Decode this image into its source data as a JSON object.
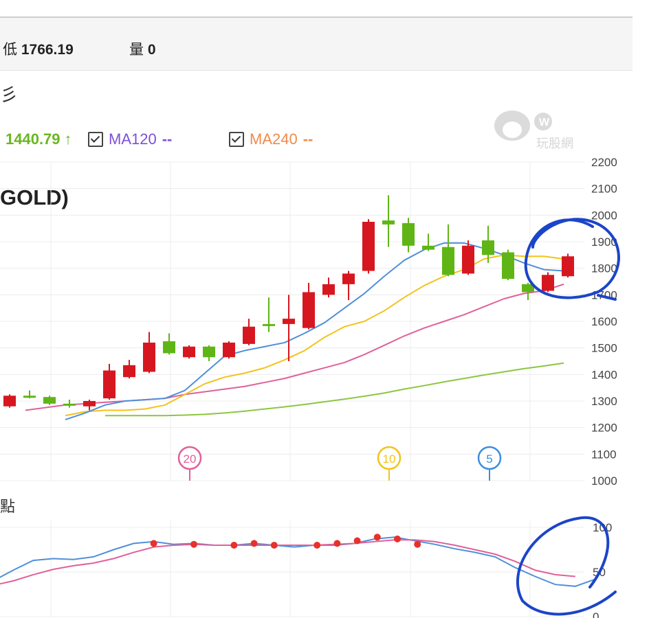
{
  "stats": {
    "low_label": "低",
    "low_value": "1766.19",
    "volume_label": "量",
    "volume_value": "0"
  },
  "period_label_fragment": "彡",
  "legend": {
    "ma_prev_value": "1440.79",
    "ma_prev_arrow": "↑",
    "ma120_label": "MA120",
    "ma120_value": "--",
    "ma240_label": "MA240",
    "ma240_value": "--"
  },
  "title_fragment": "GOLD)",
  "watermark": "玩股網",
  "oscillator_label_fragment": "點",
  "markers": [
    {
      "label": "20",
      "color": "#e0609a"
    },
    {
      "label": "10",
      "color": "#f2c31a"
    },
    {
      "label": "5",
      "color": "#3c8de0"
    }
  ],
  "colors": {
    "up": "#d7171f",
    "down": "#5fb515",
    "ma5": "#4f8fd8",
    "ma10": "#f2c31a",
    "ma20": "#e0609a",
    "ma60": "#8cc63f",
    "legend_green": "#69b71f",
    "legend_purple": "#7e4fd8",
    "legend_orange": "#f08a4b",
    "annotation": "#1b45c8",
    "osc_k": "#4f8fd8",
    "osc_d": "#e0609a",
    "osc_dot": "#e8312a"
  },
  "chart_data": [
    {
      "type": "candlestick",
      "ylim": [
        1000,
        2200
      ],
      "yticks": [
        2200,
        2100,
        2000,
        1900,
        1800,
        1700,
        1600,
        1500,
        1400,
        1300,
        1200,
        1100,
        1000
      ],
      "candles": [
        {
          "o": 1280,
          "c": 1320,
          "h": 1325,
          "l": 1275
        },
        {
          "o": 1320,
          "c": 1315,
          "h": 1340,
          "l": 1310
        },
        {
          "o": 1315,
          "c": 1290,
          "h": 1320,
          "l": 1285
        },
        {
          "o": 1290,
          "c": 1285,
          "h": 1305,
          "l": 1275
        },
        {
          "o": 1280,
          "c": 1300,
          "h": 1305,
          "l": 1265
        },
        {
          "o": 1310,
          "c": 1415,
          "h": 1440,
          "l": 1305
        },
        {
          "o": 1390,
          "c": 1435,
          "h": 1455,
          "l": 1385
        },
        {
          "o": 1410,
          "c": 1520,
          "h": 1560,
          "l": 1405
        },
        {
          "o": 1525,
          "c": 1480,
          "h": 1555,
          "l": 1475
        },
        {
          "o": 1465,
          "c": 1505,
          "h": 1510,
          "l": 1460
        },
        {
          "o": 1505,
          "c": 1465,
          "h": 1510,
          "l": 1450
        },
        {
          "o": 1465,
          "c": 1520,
          "h": 1525,
          "l": 1460
        },
        {
          "o": 1515,
          "c": 1580,
          "h": 1610,
          "l": 1510
        },
        {
          "o": 1590,
          "c": 1588,
          "h": 1690,
          "l": 1560
        },
        {
          "o": 1590,
          "c": 1610,
          "h": 1700,
          "l": 1450
        },
        {
          "o": 1575,
          "c": 1710,
          "h": 1745,
          "l": 1570
        },
        {
          "o": 1700,
          "c": 1740,
          "h": 1765,
          "l": 1690
        },
        {
          "o": 1740,
          "c": 1780,
          "h": 1790,
          "l": 1680
        },
        {
          "o": 1790,
          "c": 1975,
          "h": 1985,
          "l": 1780
        },
        {
          "o": 1980,
          "c": 1965,
          "h": 2075,
          "l": 1880
        },
        {
          "o": 1970,
          "c": 1885,
          "h": 1990,
          "l": 1860
        },
        {
          "o": 1885,
          "c": 1870,
          "h": 1930,
          "l": 1865
        },
        {
          "o": 1880,
          "c": 1775,
          "h": 1965,
          "l": 1770
        },
        {
          "o": 1780,
          "c": 1885,
          "h": 1905,
          "l": 1775
        },
        {
          "o": 1905,
          "c": 1850,
          "h": 1960,
          "l": 1820
        },
        {
          "o": 1860,
          "c": 1760,
          "h": 1870,
          "l": 1755
        },
        {
          "o": 1740,
          "c": 1710,
          "h": 1745,
          "l": 1680
        },
        {
          "o": 1715,
          "c": 1775,
          "h": 1785,
          "l": 1710
        },
        {
          "o": 1770,
          "c": 1845,
          "h": 1855,
          "l": 1765
        }
      ],
      "ma5": [
        1230,
        1255,
        1285,
        1300,
        1305,
        1310,
        1340,
        1405,
        1470,
        1490,
        1505,
        1520,
        1555,
        1595,
        1650,
        1705,
        1770,
        1830,
        1870,
        1895,
        1895,
        1875,
        1850,
        1820,
        1795,
        1790
      ],
      "ma10": [
        1245,
        1260,
        1265,
        1265,
        1270,
        1285,
        1325,
        1365,
        1390,
        1405,
        1425,
        1455,
        1490,
        1540,
        1580,
        1600,
        1640,
        1690,
        1735,
        1770,
        1795,
        1835,
        1850,
        1845,
        1845,
        1835
      ],
      "ma20": [
        1265,
        1275,
        1285,
        1290,
        1295,
        1300,
        1305,
        1310,
        1325,
        1335,
        1345,
        1355,
        1370,
        1385,
        1405,
        1425,
        1445,
        1475,
        1510,
        1545,
        1575,
        1600,
        1625,
        1655,
        1685,
        1705,
        1715,
        1740
      ],
      "ma60": [
        1245,
        1245,
        1245,
        1245,
        1247,
        1250,
        1255,
        1262,
        1270,
        1278,
        1287,
        1297,
        1307,
        1318,
        1330,
        1345,
        1358,
        1372,
        1385,
        1398,
        1410,
        1422,
        1432,
        1443
      ]
    },
    {
      "type": "line",
      "ylim": [
        0,
        100
      ],
      "yticks": [
        100,
        50,
        0
      ],
      "series": [
        {
          "name": "K",
          "values": [
            40,
            52,
            63,
            65,
            64,
            67,
            75,
            82,
            84,
            81,
            82,
            80,
            80,
            82,
            80,
            78,
            80,
            80,
            82,
            87,
            89,
            85,
            81,
            76,
            72,
            67,
            55,
            45,
            36,
            34,
            42
          ]
        },
        {
          "name": "D",
          "values": [
            35,
            40,
            47,
            53,
            57,
            60,
            65,
            72,
            78,
            80,
            81,
            80,
            80,
            80,
            80,
            80,
            80,
            81,
            82,
            84,
            86,
            86,
            84,
            80,
            75,
            70,
            62,
            52,
            47,
            45
          ]
        }
      ],
      "dots": [
        82,
        81,
        80,
        82,
        80,
        80,
        82,
        85,
        89,
        87,
        81
      ]
    }
  ]
}
